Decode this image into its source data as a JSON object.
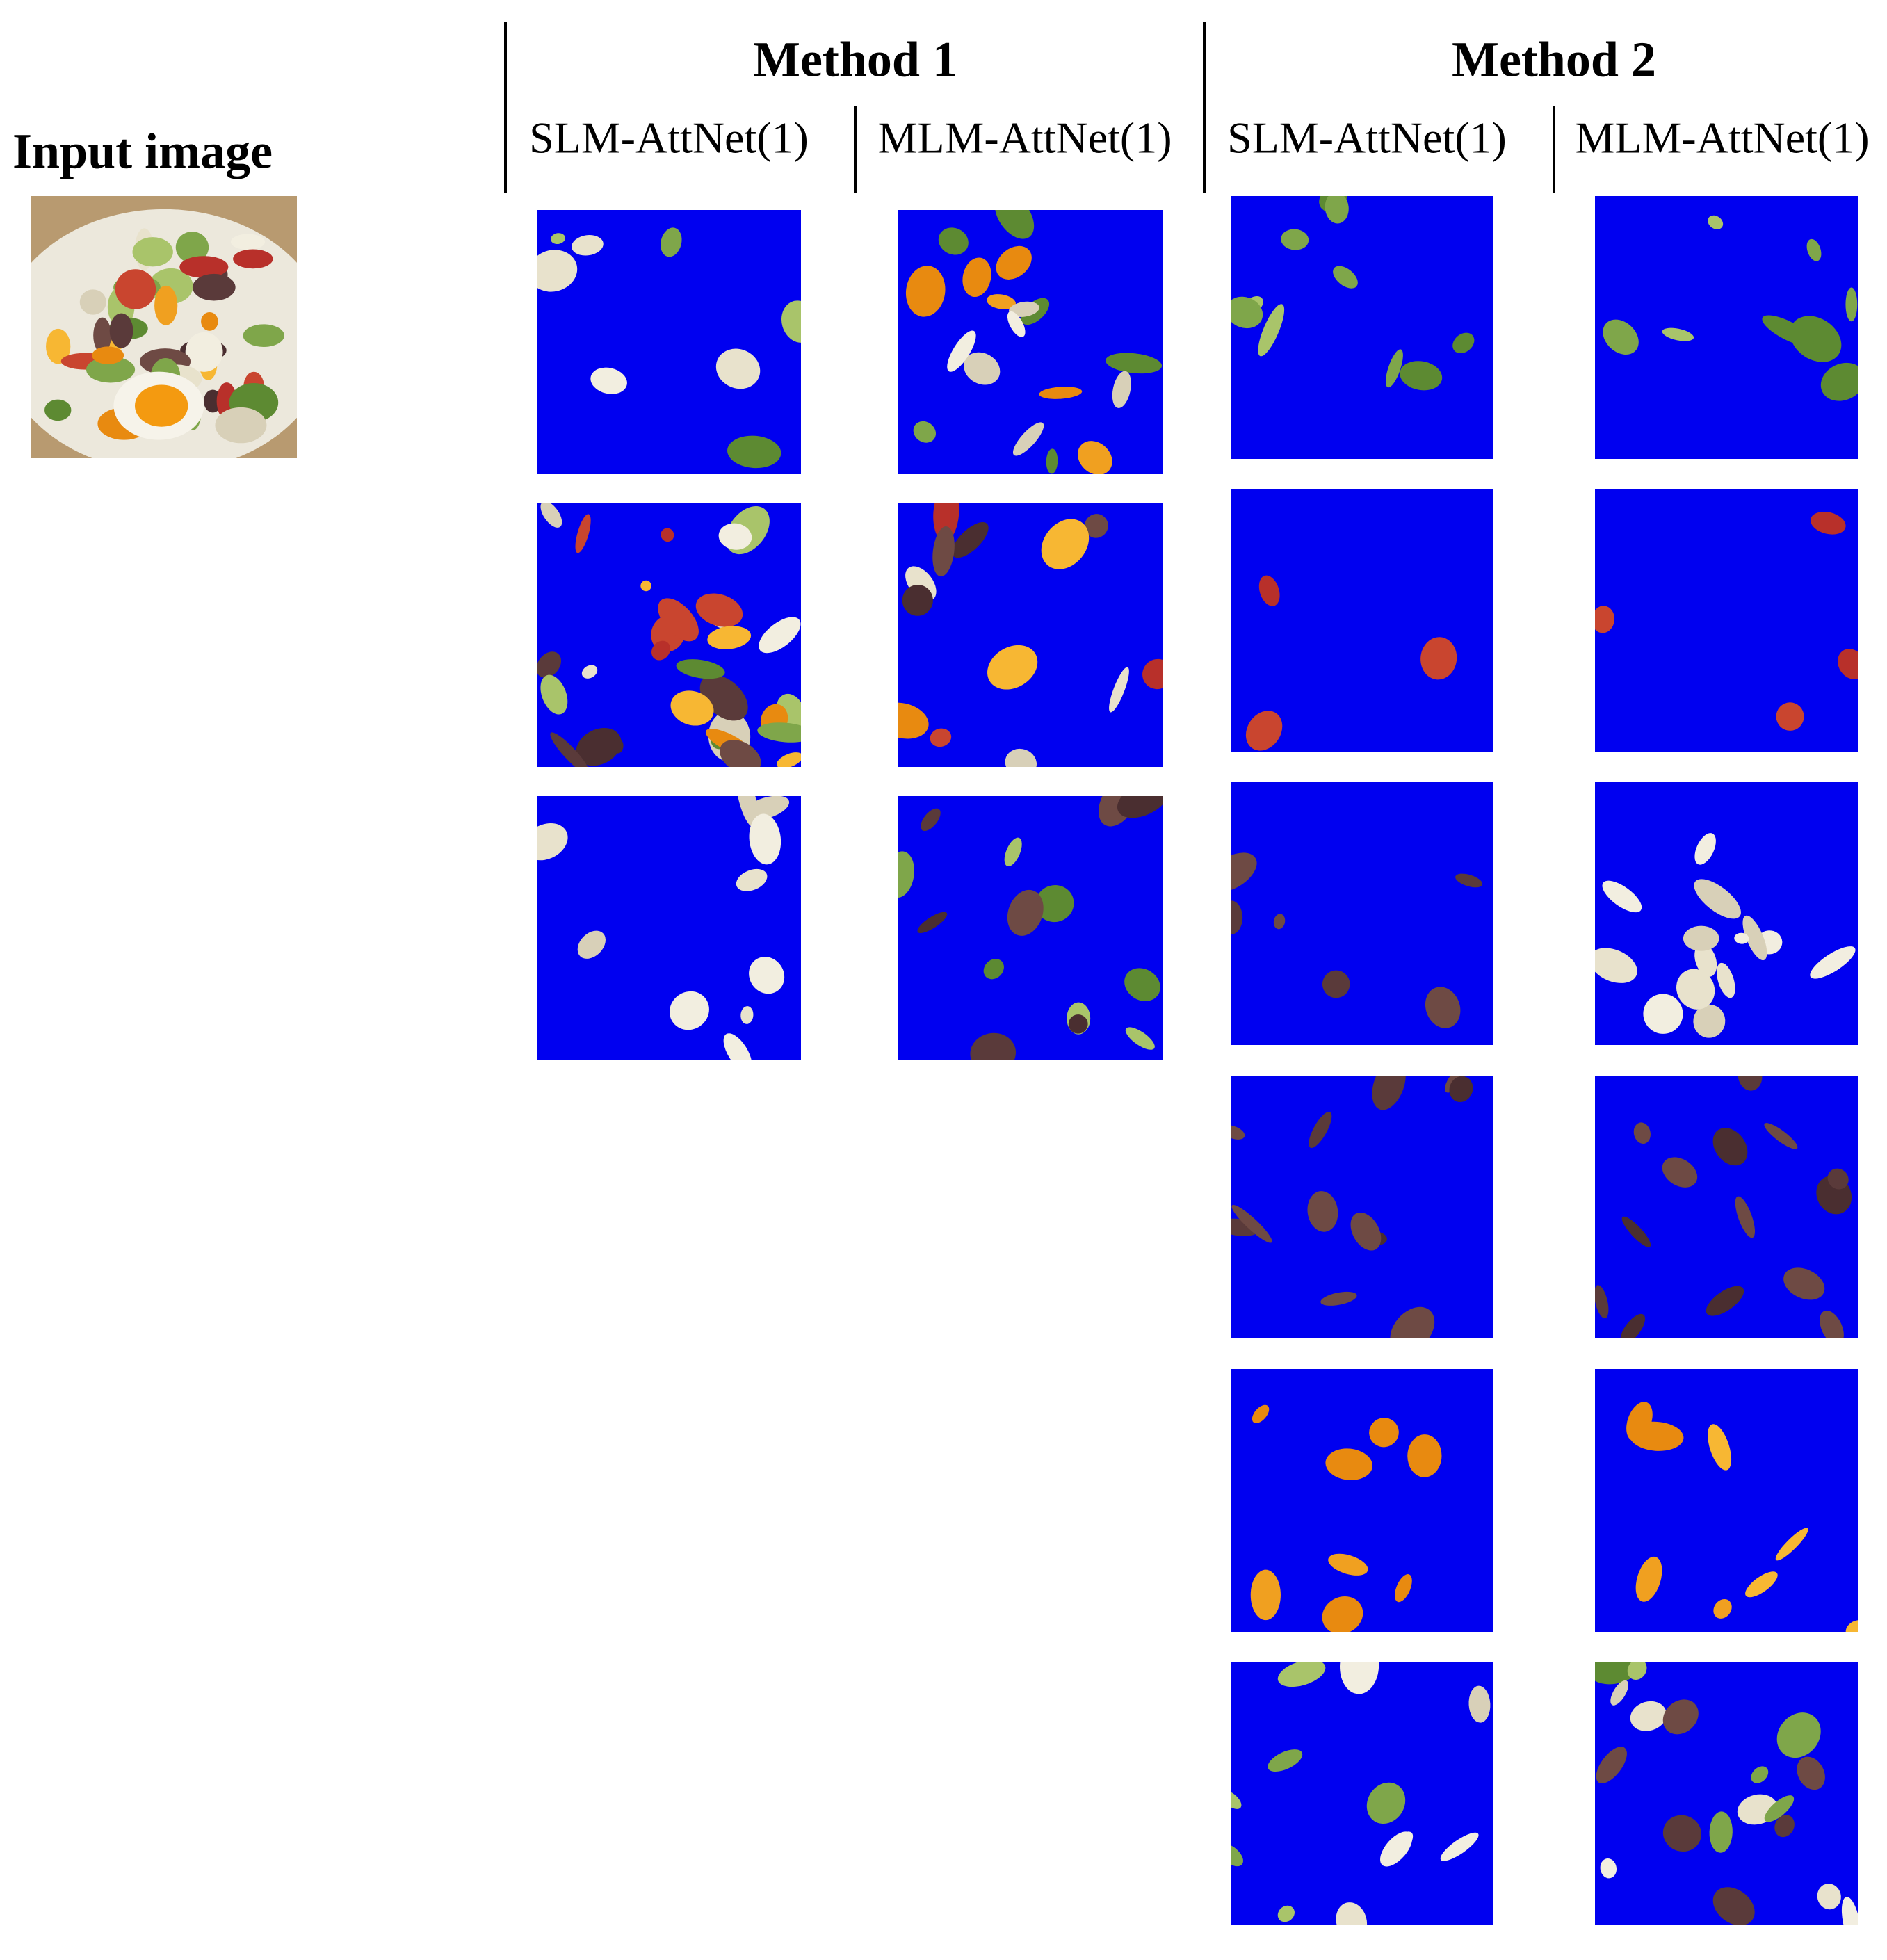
{
  "input_label": "Input image",
  "methods": [
    {
      "title": "Method 1",
      "columns": [
        "SLM-AttNet(1)",
        "MLM-AttNet(1)"
      ]
    },
    {
      "title": "Method 2",
      "columns": [
        "SLM-AttNet(1)",
        "MLM-AttNet(1)"
      ]
    }
  ]
}
